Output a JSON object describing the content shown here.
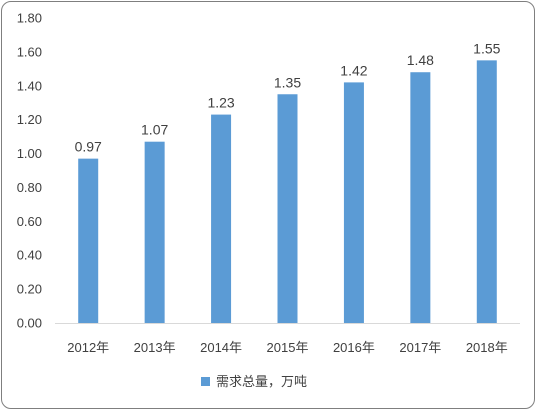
{
  "chart_data": {
    "type": "bar",
    "categories": [
      "2012年",
      "2013年",
      "2014年",
      "2015年",
      "2016年",
      "2017年",
      "2018年"
    ],
    "series": [
      {
        "name": "需求总量，万吨",
        "values": [
          0.97,
          1.07,
          1.23,
          1.35,
          1.42,
          1.48,
          1.55
        ],
        "data_labels": [
          "0.97",
          "1.07",
          "1.23",
          "1.35",
          "1.42",
          "1.48",
          "1.55"
        ],
        "color": "#5b9bd5"
      }
    ],
    "y_ticks": [
      "0.00",
      "0.20",
      "0.40",
      "0.60",
      "0.80",
      "1.00",
      "1.20",
      "1.40",
      "1.60",
      "1.80"
    ],
    "ylim": [
      0,
      1.8
    ],
    "grid": false,
    "legend_position": "bottom"
  }
}
